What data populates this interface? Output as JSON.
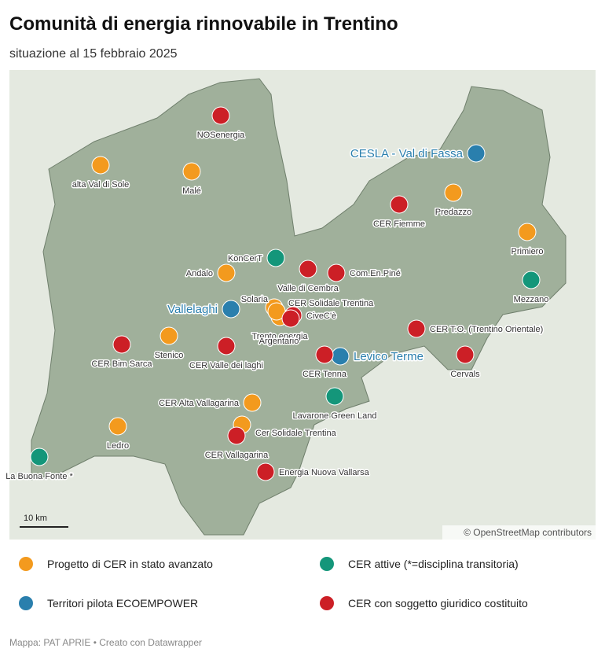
{
  "title": "Comunità di energia rinnovabile in Trentino",
  "subtitle": "situazione al 15 febbraio 2025",
  "legend": [
    {
      "label": "Progetto di CER in stato avanzato",
      "color": "#f39a1e",
      "points": [
        "alta Val di Sole",
        "Malé",
        "Predazzo",
        "Primiero",
        "Andalo",
        "Solaria",
        "Trento energia",
        "CER Solidale Trentina",
        "Stenico",
        "CER Alta Vallagarina",
        "Cer Solidale Trentina",
        "Ledro"
      ]
    },
    {
      "label": "CER attive (*=disciplina transitoria)",
      "color": "#14967a",
      "points": [
        "KonCerT",
        "Mezzano",
        "Lavarone Green Land",
        "La Buona Fonte *"
      ]
    },
    {
      "label": "Territori pilota ECOEMPOWER",
      "color": "#2a7fad",
      "points": [
        "CESLA - Val di Fassa",
        "Vallelaghi",
        "Levico Terme"
      ]
    },
    {
      "label": "CER con soggetto giuridico costituito",
      "color": "#cc1f26",
      "points": [
        "NOSenergia",
        "CER Fiemme",
        "Valle di Cembra",
        "Com.En.Piné",
        "CiveC'è",
        "Argentario",
        "CER T.O. (Trentino Orientale)",
        "CER Bim Sarca",
        "CER Valle dei laghi",
        "CER Tenna",
        "Cervals",
        "CER Vallagarina",
        "Energia Nuova Vallarsa"
      ]
    }
  ],
  "scale_label": "10 km",
  "attribution": "© OpenStreetMap contributors",
  "footer": "Mappa: PAT APRIE • Creato con Datawrapper"
}
